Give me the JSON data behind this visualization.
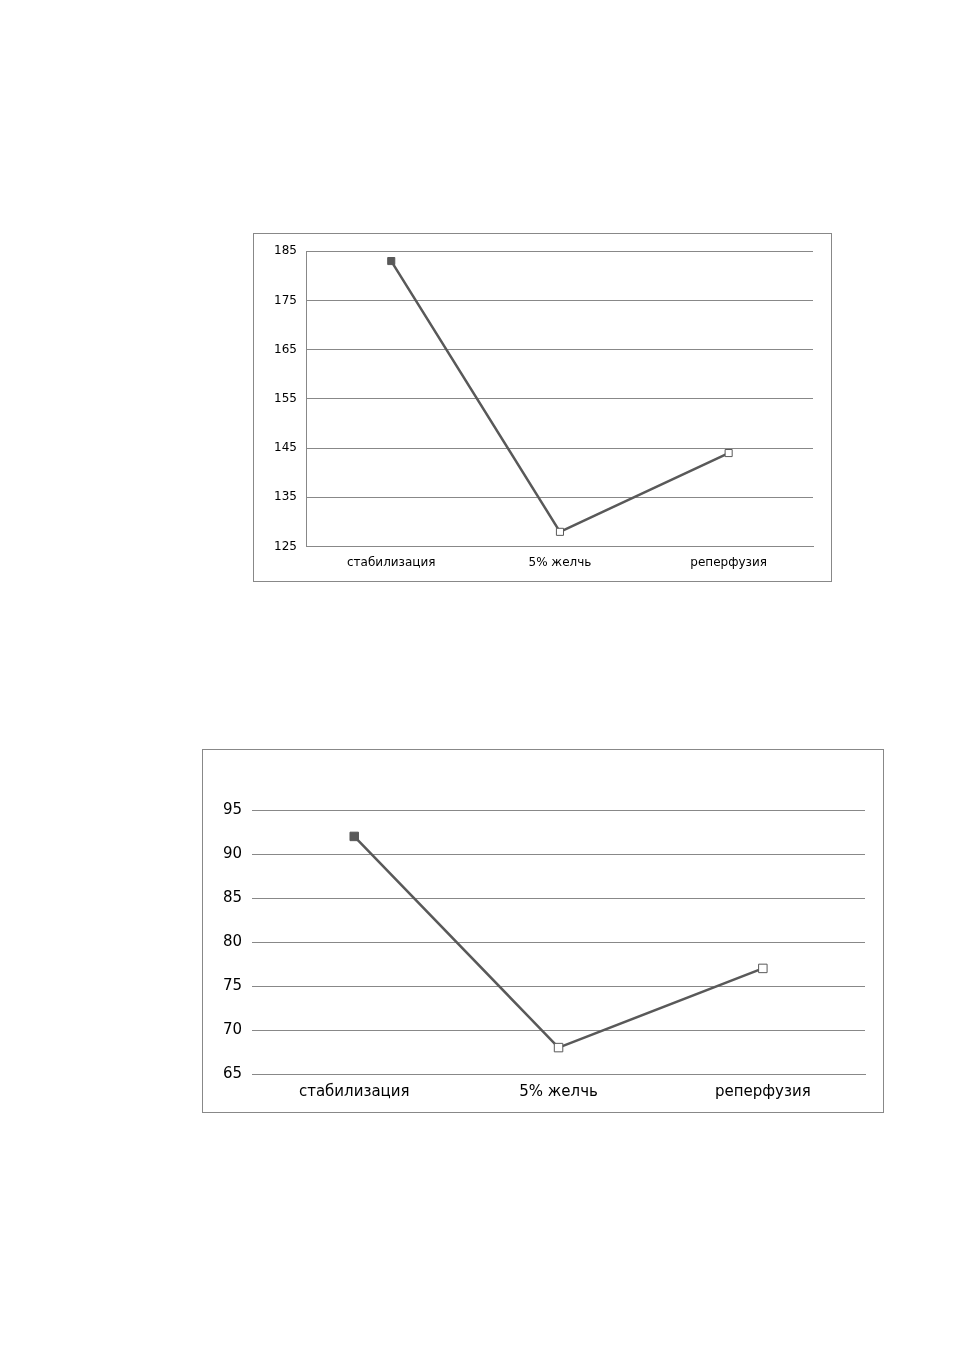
{
  "chart_data": [
    {
      "type": "line",
      "categories": [
        "стабилизация",
        "5% желчь",
        "реперфузия"
      ],
      "series": [
        {
          "color": "#595959",
          "colors": [
            "#595959",
            "#ffffff",
            "#ffffff"
          ],
          "values": [
            183,
            128,
            144
          ]
        }
      ],
      "ylim": [
        125,
        185
      ],
      "yticks": [
        125,
        135,
        145,
        155,
        165,
        175,
        185
      ],
      "grid": "y",
      "legend": false,
      "marker": "square",
      "line_style": "solid"
    },
    {
      "type": "line",
      "categories": [
        "стабилизация",
        "5% желчь",
        "реперфузия"
      ],
      "series": [
        {
          "color": "#595959",
          "colors": [
            "#595959",
            "#ffffff",
            "#ffffff"
          ],
          "values": [
            92,
            68,
            77
          ]
        }
      ],
      "ylim": [
        65,
        95
      ],
      "yticks": [
        65,
        70,
        75,
        80,
        85,
        90,
        95
      ],
      "grid": "y",
      "legend": false,
      "marker": "square",
      "line_style": "solid"
    }
  ]
}
